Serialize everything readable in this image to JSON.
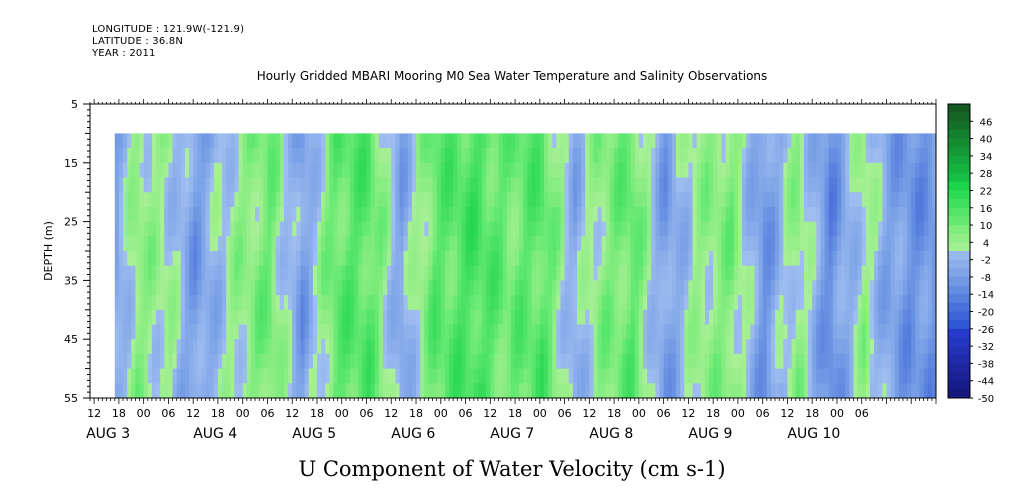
{
  "header": {
    "longitude": "LONGITUDE : 121.9W(-121.9)",
    "latitude": "LATITUDE : 36.8N",
    "year": "YEAR : 2011"
  },
  "chart_data": {
    "type": "heatmap",
    "title": "Hourly Gridded MBARI Mooring M0 Sea Water Temperature and Salinity Observations",
    "xlabel": "U Component of Water Velocity (cm s-1)",
    "ylabel": "DEPTH (m)",
    "y_axis": {
      "range": [
        5,
        55
      ],
      "inverted": true,
      "tick_labels": [
        "5",
        "15",
        "25",
        "35",
        "45",
        "55"
      ],
      "data_depth_range": [
        10,
        55
      ]
    },
    "x_axis": {
      "range_hours": [
        "2011-08-02 11:00",
        "2011-08-10 12:00"
      ],
      "hour_ticks": [
        "12",
        "18",
        "00",
        "06",
        "12",
        "18",
        "00",
        "06",
        "12",
        "18",
        "00",
        "06",
        "12",
        "18",
        "00",
        "06",
        "12",
        "18",
        "00",
        "06",
        "12",
        "18",
        "00",
        "06",
        "12",
        "18",
        "00",
        "06",
        "12",
        "18",
        "00",
        "06"
      ],
      "day_labels": [
        "AUG  3",
        "AUG  4",
        "AUG  5",
        "AUG  6",
        "AUG  7",
        "AUG  8",
        "AUG  9",
        "AUG 10"
      ],
      "data_start": "2011-08-02 17:00"
    },
    "colorbar": {
      "labels": [
        "46",
        "40",
        "34",
        "28",
        "22",
        "16",
        "10",
        "4",
        "-2",
        "-8",
        "-14",
        "-20",
        "-26",
        "-32",
        "-38",
        "-44",
        "-50"
      ],
      "min": -50,
      "max": 52,
      "step": 3
    },
    "pattern_columns": [
      {
        "hour": 17,
        "value": -6
      },
      {
        "hour": 22,
        "value": 6
      },
      {
        "hour": 30,
        "value": 2
      },
      {
        "hour": 36,
        "value": -8
      },
      {
        "hour": 46,
        "value": 4
      },
      {
        "hour": 54,
        "value": 10
      },
      {
        "hour": 62,
        "value": -8
      },
      {
        "hour": 70,
        "value": 12
      },
      {
        "hour": 78,
        "value": 14
      },
      {
        "hour": 86,
        "value": -6
      },
      {
        "hour": 94,
        "value": 12
      },
      {
        "hour": 104,
        "value": 16
      },
      {
        "hour": 112,
        "value": 10
      },
      {
        "hour": 120,
        "value": 14
      },
      {
        "hour": 128,
        "value": -4
      },
      {
        "hour": 134,
        "value": 6
      },
      {
        "hour": 142,
        "value": 12
      },
      {
        "hour": 150,
        "value": -8
      },
      {
        "hour": 158,
        "value": 4
      },
      {
        "hour": 166,
        "value": 8
      },
      {
        "hour": 174,
        "value": -10
      },
      {
        "hour": 182,
        "value": 6
      },
      {
        "hour": 190,
        "value": -12
      },
      {
        "hour": 198,
        "value": 4
      },
      {
        "hour": 204,
        "value": -6
      },
      {
        "hour": 209,
        "value": -10
      }
    ]
  }
}
